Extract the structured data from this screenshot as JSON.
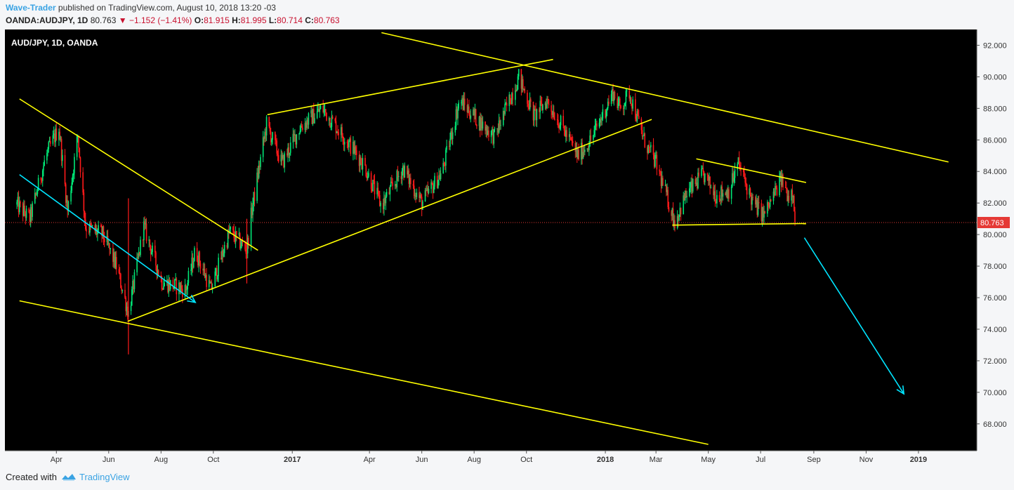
{
  "header": {
    "author": "Wave-Trader",
    "published_text": " published on TradingView.com, August 10, 2018 13:20 -03",
    "symbol": "OANDA:AUDJPY, 1D",
    "last": "80.763",
    "change": "−1.152 (−1.41%)",
    "o_label": "O:",
    "o_value": "81.915",
    "h_label": "H:",
    "h_value": "81.995",
    "l_label": "L:",
    "l_value": "80.714",
    "c_label": "C:",
    "c_value": "80.763"
  },
  "footer": {
    "created_with": "Created with",
    "brand": "TradingView"
  },
  "chart_data": {
    "type": "candlestick",
    "title": "AUD/JPY, 1D, OANDA",
    "price_label": "80.763",
    "ylim": [
      66.3,
      93.0
    ],
    "y_ticks": [
      "92.000",
      "90.000",
      "88.000",
      "86.000",
      "84.000",
      "82.000",
      "80.000",
      "78.000",
      "76.000",
      "74.000",
      "72.000",
      "70.000",
      "68.000"
    ],
    "x_ticks": [
      {
        "label": "Apr",
        "bold": false
      },
      {
        "label": "Jun",
        "bold": false
      },
      {
        "label": "Aug",
        "bold": false
      },
      {
        "label": "Oct",
        "bold": false
      },
      {
        "label": "2017",
        "bold": true
      },
      {
        "label": "Apr",
        "bold": false
      },
      {
        "label": "Jun",
        "bold": false
      },
      {
        "label": "Aug",
        "bold": false
      },
      {
        "label": "Oct",
        "bold": false
      },
      {
        "label": "2018",
        "bold": true
      },
      {
        "label": "Mar",
        "bold": false
      },
      {
        "label": "May",
        "bold": false
      },
      {
        "label": "Jul",
        "bold": false
      },
      {
        "label": "Sep",
        "bold": false
      },
      {
        "label": "Nov",
        "bold": false
      },
      {
        "label": "2019",
        "bold": true
      }
    ],
    "price_path": [
      [
        "2016-02-15",
        81.9
      ],
      [
        "2016-03-01",
        81.0
      ],
      [
        "2016-03-20",
        85.0
      ],
      [
        "2016-04-04",
        86.8
      ],
      [
        "2016-04-14",
        81.5
      ],
      [
        "2016-04-26",
        86.3
      ],
      [
        "2016-05-05",
        80.5
      ],
      [
        "2016-05-25",
        80.0
      ],
      [
        "2016-06-10",
        78.0
      ],
      [
        "2016-06-24",
        75.0
      ],
      [
        "2016-07-12",
        80.5
      ],
      [
        "2016-08-02",
        77.0
      ],
      [
        "2016-08-30",
        76.5
      ],
      [
        "2016-09-10",
        79.0
      ],
      [
        "2016-09-28",
        76.5
      ],
      [
        "2016-10-20",
        80.2
      ],
      [
        "2016-11-09",
        79.0
      ],
      [
        "2016-11-15",
        81.6
      ],
      [
        "2016-12-02",
        87.0
      ],
      [
        "2016-12-20",
        84.5
      ],
      [
        "2017-01-10",
        86.8
      ],
      [
        "2017-02-05",
        88.0
      ],
      [
        "2017-03-05",
        86.0
      ],
      [
        "2017-03-25",
        84.5
      ],
      [
        "2017-04-15",
        81.8
      ],
      [
        "2017-05-10",
        84.2
      ],
      [
        "2017-06-01",
        82.0
      ],
      [
        "2017-06-25",
        84.0
      ],
      [
        "2017-07-15",
        88.5
      ],
      [
        "2017-08-10",
        87.0
      ],
      [
        "2017-08-25",
        86.2
      ],
      [
        "2017-09-22",
        90.0
      ],
      [
        "2017-10-10",
        87.5
      ],
      [
        "2017-10-25",
        88.5
      ],
      [
        "2017-11-15",
        86.5
      ],
      [
        "2017-11-30",
        85.0
      ],
      [
        "2017-12-15",
        86.0
      ],
      [
        "2018-01-10",
        89.0
      ],
      [
        "2018-01-18",
        88.0
      ],
      [
        "2018-01-29",
        89.0
      ],
      [
        "2018-02-15",
        86.0
      ],
      [
        "2018-03-01",
        84.5
      ],
      [
        "2018-03-23",
        80.8
      ],
      [
        "2018-04-05",
        82.5
      ],
      [
        "2018-04-25",
        83.8
      ],
      [
        "2018-05-10",
        82.5
      ],
      [
        "2018-05-25",
        82.8
      ],
      [
        "2018-06-05",
        84.5
      ],
      [
        "2018-06-22",
        82.0
      ],
      [
        "2018-07-05",
        81.2
      ],
      [
        "2018-07-25",
        83.5
      ],
      [
        "2018-08-02",
        82.5
      ],
      [
        "2018-08-08",
        82.9
      ],
      [
        "2018-08-10",
        80.763
      ]
    ],
    "annotations": {
      "lines": [
        {
          "kind": "trendline",
          "color": "#ffff00",
          "from": [
            "2016-02-18",
            88.6
          ],
          "to": [
            "2016-11-22",
            79.0
          ]
        },
        {
          "kind": "trendline",
          "color": "#ffff00",
          "from": [
            "2016-02-18",
            75.8
          ],
          "to": [
            "2018-05-01",
            66.7
          ]
        },
        {
          "kind": "trendline",
          "color": "#ffff00",
          "from": [
            "2016-06-23",
            74.5
          ],
          "to": [
            "2018-02-24",
            87.3
          ]
        },
        {
          "kind": "trendline",
          "color": "#ffff00",
          "from": [
            "2016-12-03",
            87.6
          ],
          "to": [
            "2017-11-01",
            91.1
          ]
        },
        {
          "kind": "trendline",
          "color": "#ffff00",
          "from": [
            "2017-04-15",
            92.8
          ],
          "to": [
            "2019-02-05",
            84.6
          ]
        },
        {
          "kind": "trendline",
          "color": "#ffff00",
          "from": [
            "2018-04-17",
            84.8
          ],
          "to": [
            "2018-08-23",
            83.3
          ]
        },
        {
          "kind": "trendline",
          "color": "#ffff00",
          "from": [
            "2018-03-20",
            80.6
          ],
          "to": [
            "2018-08-23",
            80.7
          ]
        }
      ],
      "arrows": [
        {
          "color": "#00e5ff",
          "from": [
            "2016-02-18",
            83.8
          ],
          "to": [
            "2016-09-10",
            75.7
          ]
        },
        {
          "color": "#00e5ff",
          "from": [
            "2018-08-21",
            79.8
          ],
          "to": [
            "2018-12-15",
            69.9
          ]
        }
      ],
      "last_price_line": {
        "color": "#e53935",
        "value": 80.763
      }
    },
    "colors": {
      "up": "#00e676",
      "down": "#ff1a1a",
      "background": "#000000"
    },
    "grid": false
  }
}
